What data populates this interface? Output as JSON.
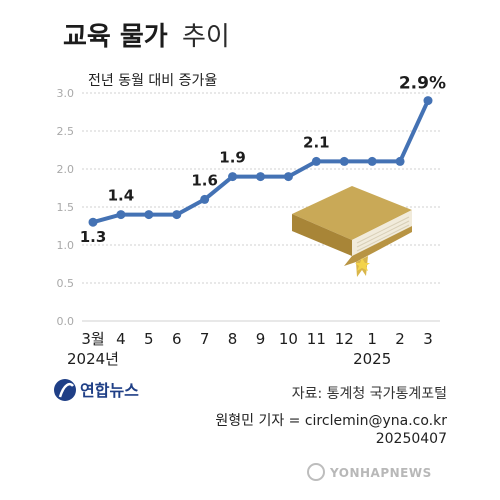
{
  "header": {
    "title_main": "교육 물가",
    "title_sub": "추이"
  },
  "chart_data": {
    "type": "line",
    "subtitle": "전년 동월 대비 증가율",
    "categories": [
      "3월",
      "4",
      "5",
      "6",
      "7",
      "8",
      "9",
      "10",
      "11",
      "12",
      "1",
      "2",
      "3"
    ],
    "year_labels": [
      {
        "label": "2024년",
        "category_index": 0
      },
      {
        "label": "2025",
        "category_index": 10
      }
    ],
    "series": [
      {
        "values": [
          1.3,
          1.4,
          1.4,
          1.4,
          1.6,
          1.9,
          1.9,
          1.9,
          2.1,
          2.1,
          2.1,
          2.1,
          2.9
        ]
      }
    ],
    "data_labels": [
      {
        "index": 0,
        "text": "1.3"
      },
      {
        "index": 1,
        "text": "1.4"
      },
      {
        "index": 4,
        "text": "1.6"
      },
      {
        "index": 5,
        "text": "1.9"
      },
      {
        "index": 8,
        "text": "2.1"
      },
      {
        "index": 12,
        "text": "2.9%"
      }
    ],
    "yticks": [
      "0.0",
      "0.5",
      "1.0",
      "1.5",
      "2.0",
      "2.5",
      "3.0"
    ],
    "ylim": [
      0,
      3.0
    ],
    "grid": true,
    "line_color": "#4472b4",
    "marker_color": "#4472b4"
  },
  "footer": {
    "logo": "연합뉴스",
    "source": "자료: 통계청 국가통계포털",
    "credit": "원형민 기자 = circlemin@yna.co.kr",
    "date": "20250407",
    "watermark": "YONHAPNEWS"
  },
  "colors": {
    "line": "#4472b4",
    "grid": "#d0d0d0",
    "book": "#c9a957",
    "logo": "#1f3f86"
  },
  "icons": [
    "book-illustration",
    "yonhap-logo-icon",
    "yonhap-watermark-icon"
  ]
}
